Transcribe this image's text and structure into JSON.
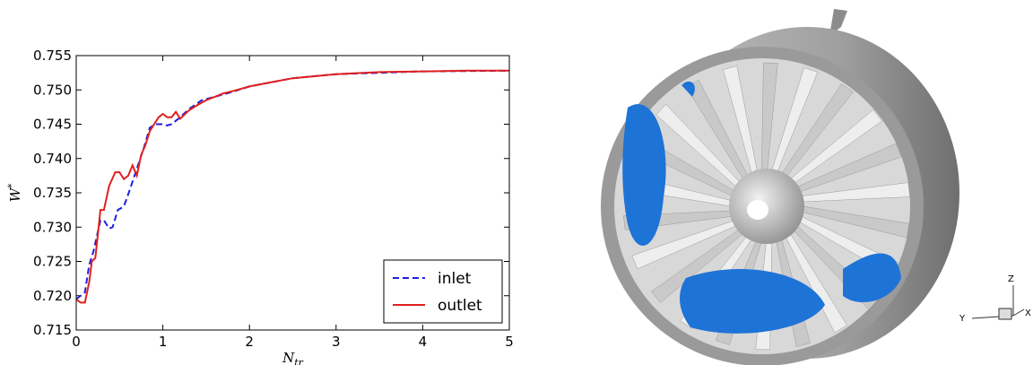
{
  "chart_data": {
    "type": "line",
    "x_label": {
      "base": "N",
      "sub": "tr"
    },
    "y_label": {
      "base": "W",
      "sup": "*"
    },
    "xlim": [
      0,
      5
    ],
    "xticks": [
      0,
      1,
      2,
      3,
      4,
      5
    ],
    "ylim": [
      0.715,
      0.755
    ],
    "yticks": [
      0.715,
      {
        "value": 0.72,
        "label": "0.720"
      },
      0.725,
      {
        "value": 0.73,
        "label": "0.730"
      },
      0.735,
      {
        "value": 0.74,
        "label": "0.740"
      },
      0.745,
      {
        "value": 0.75,
        "label": "0.750"
      },
      0.755
    ],
    "legend": "lower right",
    "series": [
      {
        "name": "inlet",
        "color": "#1f1fe0",
        "dash": true,
        "x": [
          0,
          0.1,
          0.15,
          0.2,
          0.28,
          0.32,
          0.38,
          0.42,
          0.48,
          0.55,
          0.62,
          0.7,
          0.78,
          0.85,
          0.92,
          1.0,
          1.05,
          1.1,
          1.2,
          1.3,
          1.45,
          1.6,
          1.8,
          2.0,
          2.5,
          3.0,
          4.0,
          5.0
        ],
        "values": [
          0.7195,
          0.7205,
          0.7245,
          0.7265,
          0.731,
          0.731,
          0.7298,
          0.73,
          0.7325,
          0.733,
          0.7355,
          0.7385,
          0.7415,
          0.7445,
          0.745,
          0.745,
          0.7448,
          0.745,
          0.746,
          0.7472,
          0.7485,
          0.749,
          0.7497,
          0.7505,
          0.7517,
          0.7523,
          0.7527,
          0.7528
        ]
      },
      {
        "name": "outlet",
        "color": "#e0201f",
        "dash": false,
        "x": [
          0,
          0.05,
          0.1,
          0.15,
          0.18,
          0.22,
          0.25,
          0.28,
          0.32,
          0.38,
          0.45,
          0.5,
          0.55,
          0.6,
          0.65,
          0.7,
          0.75,
          0.8,
          0.85,
          0.9,
          0.95,
          1.0,
          1.05,
          1.1,
          1.15,
          1.2,
          1.3,
          1.4,
          1.5,
          1.6,
          1.7,
          1.8,
          2.0,
          2.2,
          2.5,
          3.0,
          3.5,
          4.0,
          4.5,
          5.0
        ],
        "values": [
          0.7195,
          0.719,
          0.719,
          0.722,
          0.725,
          0.7255,
          0.729,
          0.7325,
          0.7325,
          0.736,
          0.738,
          0.738,
          0.737,
          0.7375,
          0.739,
          0.7375,
          0.7405,
          0.742,
          0.744,
          0.745,
          0.746,
          0.7465,
          0.746,
          0.746,
          0.7468,
          0.7458,
          0.747,
          0.7478,
          0.7485,
          0.749,
          0.7495,
          0.7498,
          0.7505,
          0.751,
          0.7517,
          0.7523,
          0.7526,
          0.7527,
          0.7528,
          0.7528
        ]
      }
    ]
  },
  "triad": {
    "z": "Z",
    "y": "Y",
    "x": "X"
  }
}
